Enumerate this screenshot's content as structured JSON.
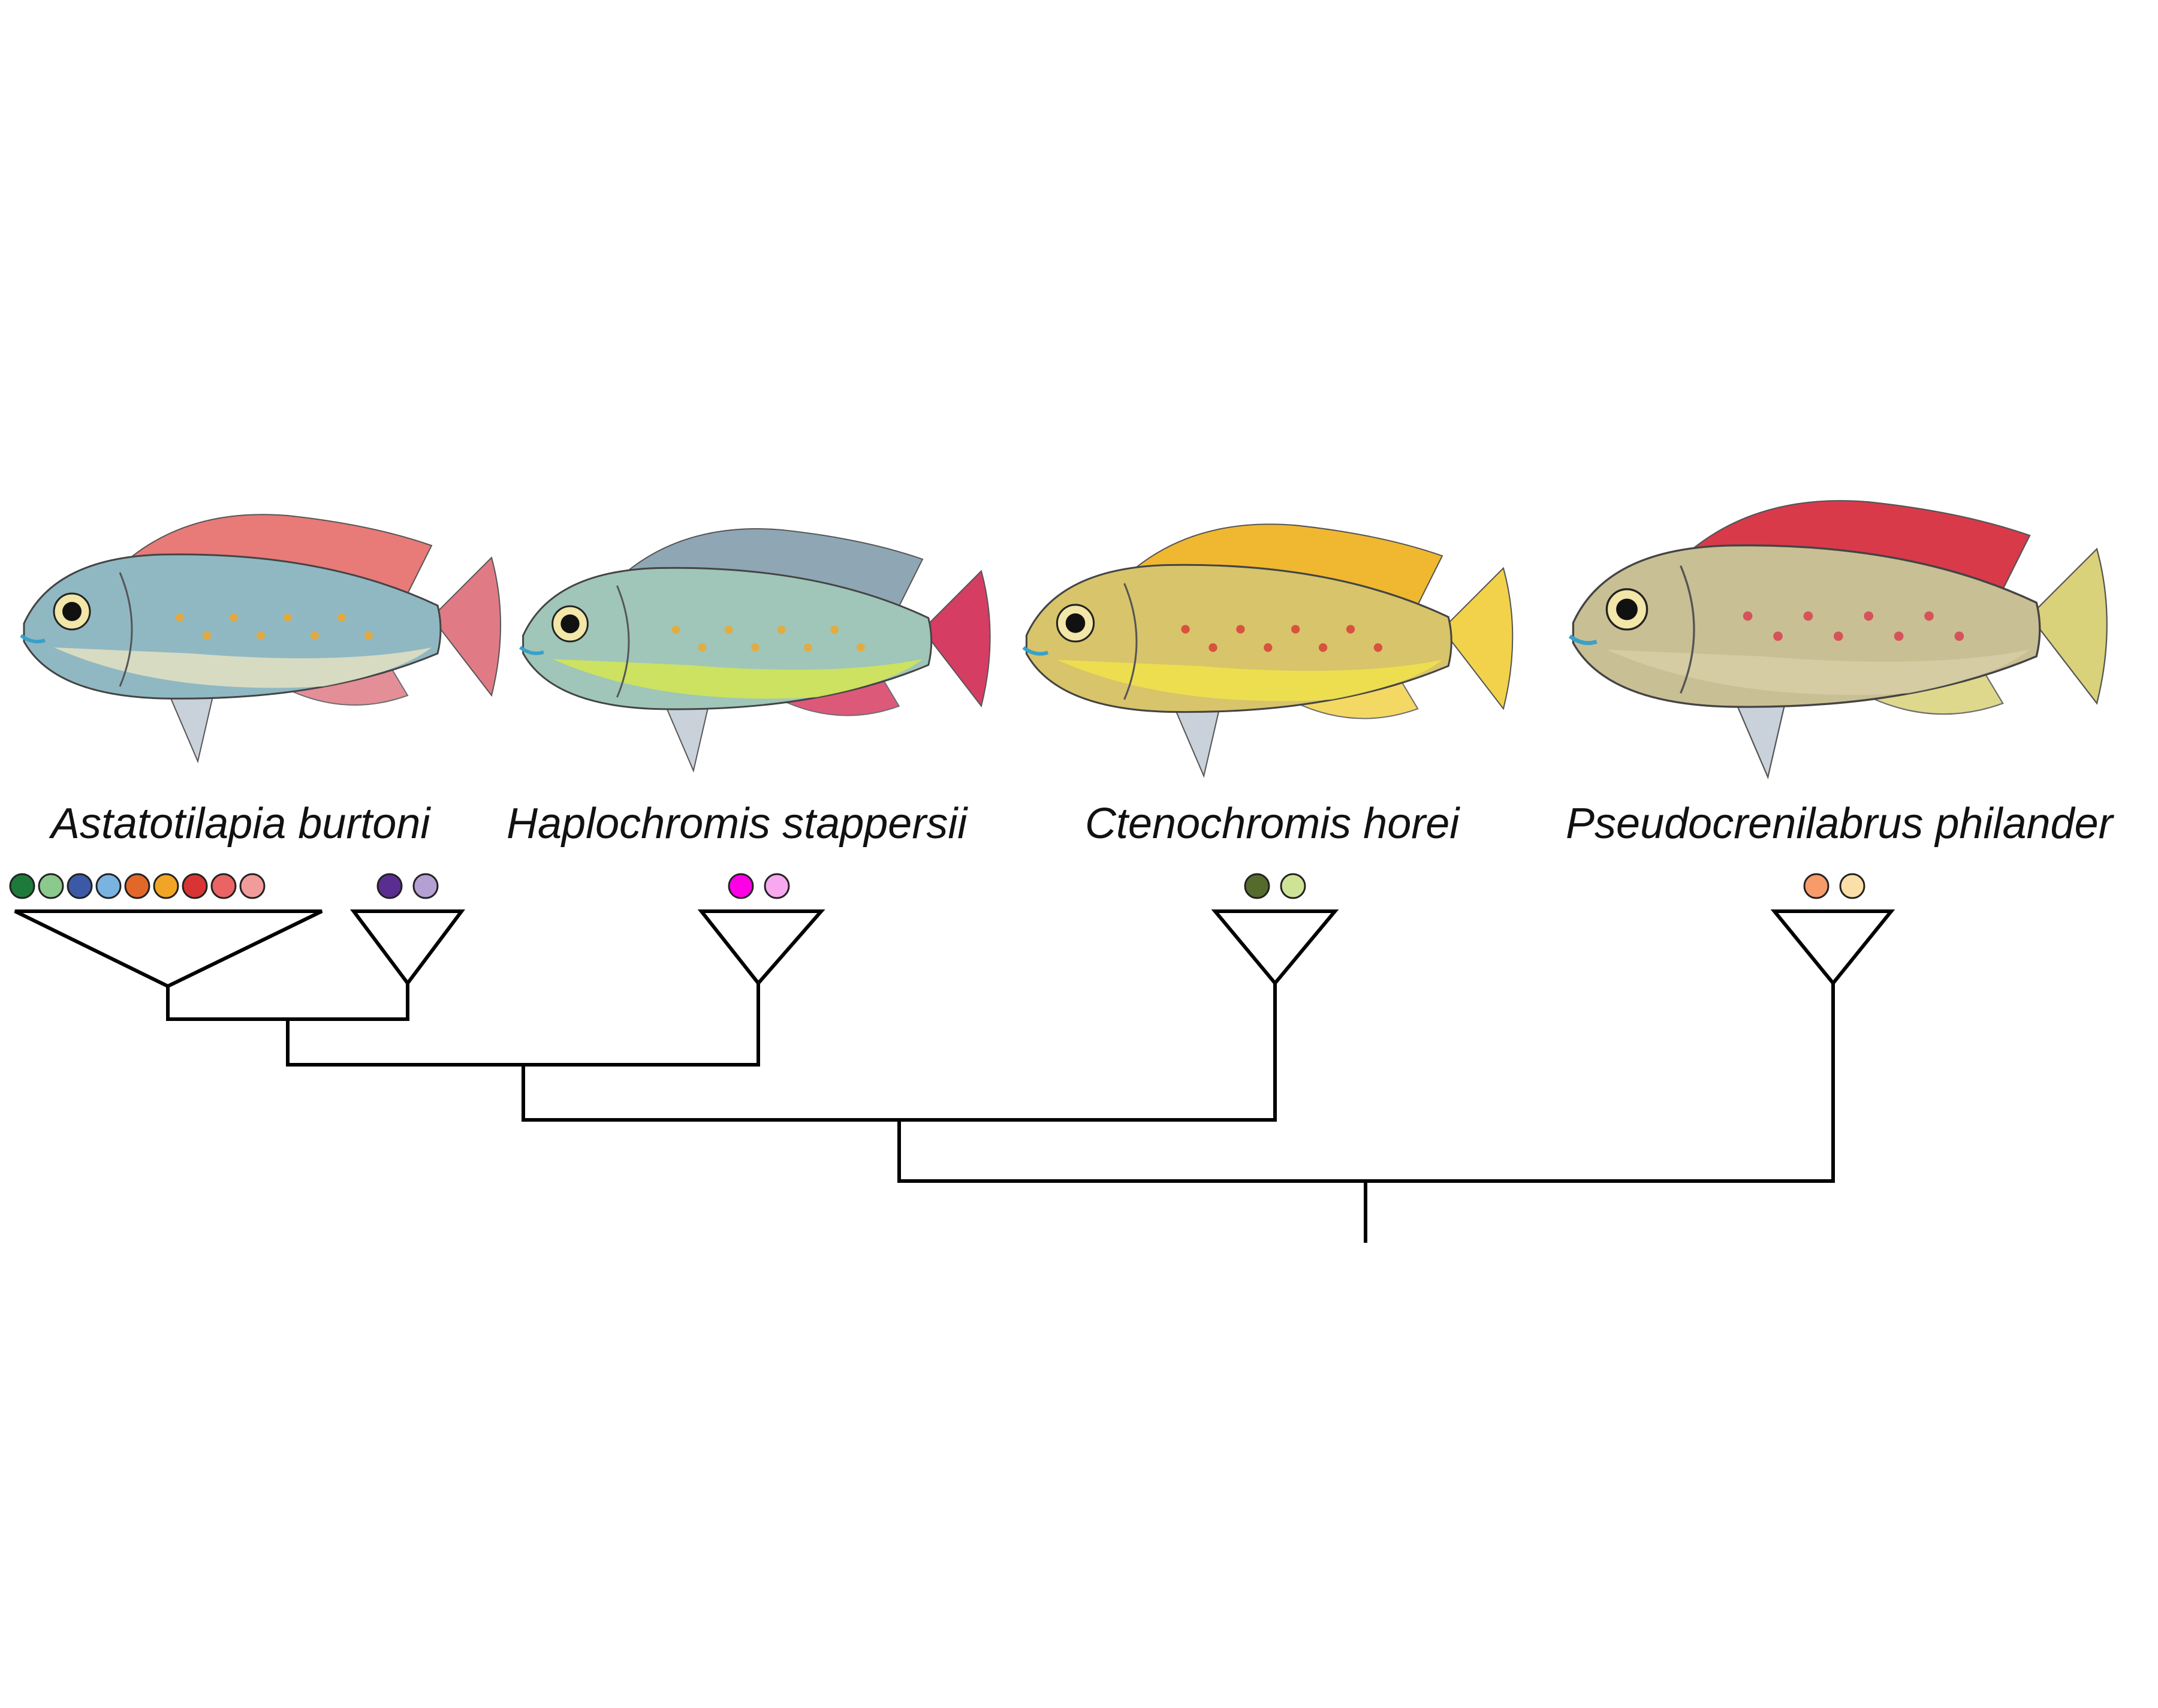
{
  "species": [
    {
      "name": "Astatotilapia burtoni",
      "clade_dots": [
        [
          "#1e7a3a",
          "#8cc98c",
          "#3c59a8",
          "#7bb3e0",
          "#e2682a",
          "#f2a524",
          "#d93434",
          "#ea6464",
          "#f29b9b"
        ],
        [
          "#5a2d91",
          "#b4a0d2"
        ]
      ],
      "fish": {
        "body": "#8fb8c2",
        "belly": "#e8e3c2",
        "dorsal": "#e87a78",
        "tail": "#e07b86",
        "accent": "#f2a524"
      }
    },
    {
      "name": "Haplochromis stappersii",
      "clade_dots": [
        [
          "#ff00e6",
          "#f7a8ef"
        ]
      ],
      "fish": {
        "body": "#9fc6b8",
        "belly": "#d7e84a",
        "dorsal": "#8fa6b4",
        "tail": "#d63d63",
        "accent": "#f2a524"
      }
    },
    {
      "name": "Ctenochromis horei",
      "clade_dots": [
        [
          "#546b2b",
          "#cfe396"
        ]
      ],
      "fish": {
        "body": "#d8c46a",
        "belly": "#f2e54a",
        "dorsal": "#f0b830",
        "tail": "#f2d24a",
        "accent": "#d93434"
      }
    },
    {
      "name": "Pseudocrenilabrus philander",
      "clade_dots": [
        [
          "#f79b6b",
          "#fbdfa8"
        ]
      ],
      "fish": {
        "body": "#c9bf94",
        "belly": "#d8cfa8",
        "dorsal": "#d93a4a",
        "tail": "#d9d27a",
        "accent": "#d93a4a"
      }
    }
  ]
}
